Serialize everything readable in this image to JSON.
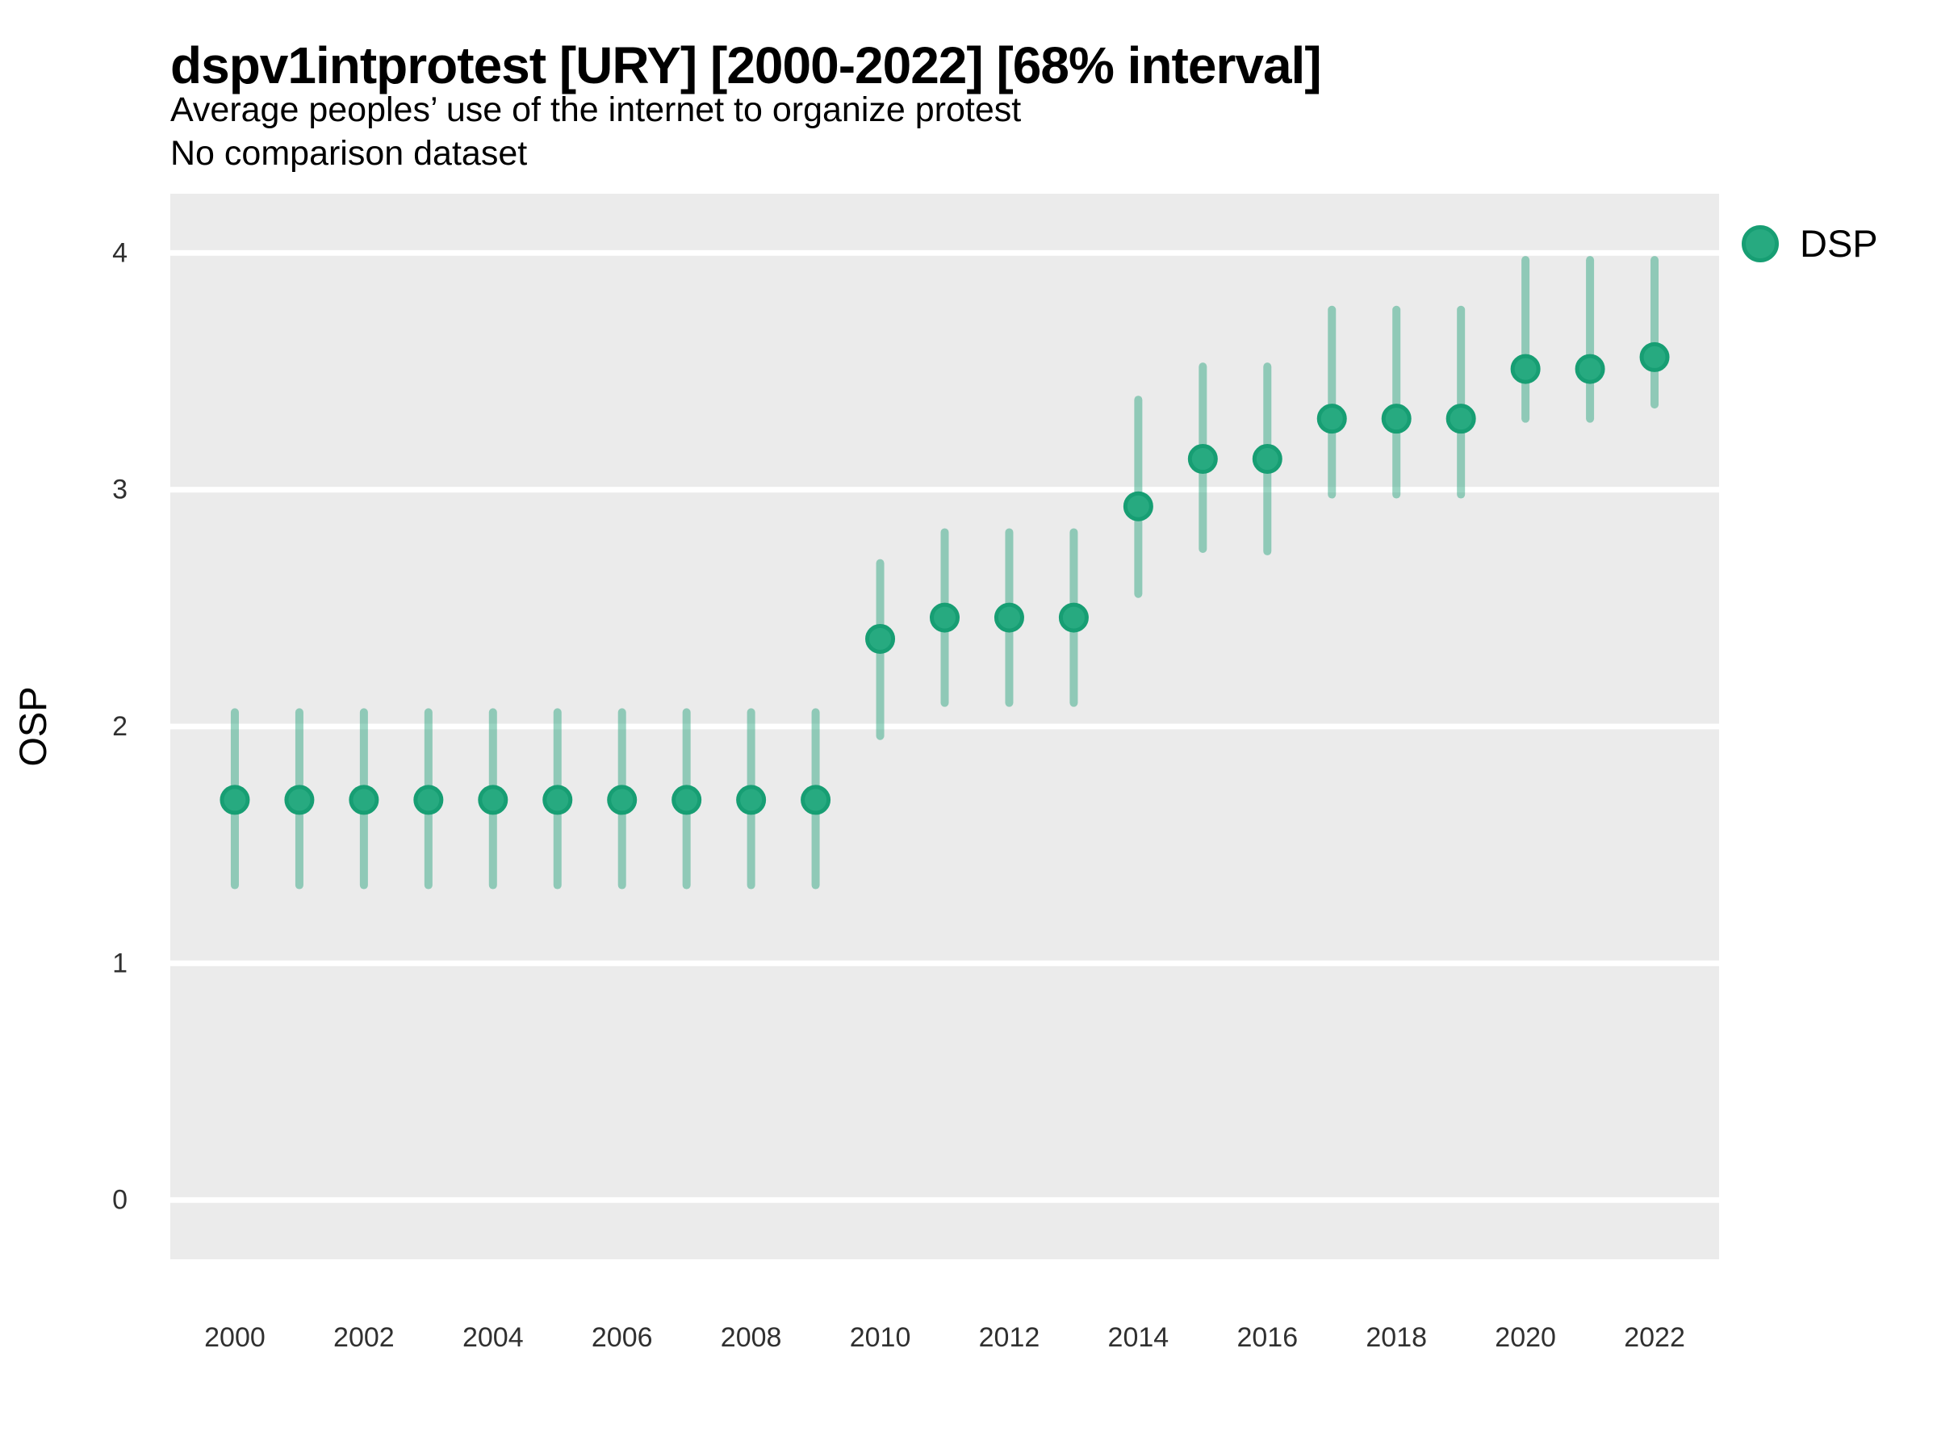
{
  "header": {
    "title": "dspv1intprotest [URY] [2000-2022] [68% interval]",
    "subtitle": "Average peoples’ use of the internet to organize protest",
    "note": "No comparison dataset"
  },
  "y_axis_label": "OSP",
  "legend": {
    "label": "DSP"
  },
  "colors": {
    "point_fill": "#27aa80",
    "point_stroke": "#179e73",
    "interval_stroke": "rgba(30,160,120,0.45)",
    "panel_bg": "#ebebeb",
    "gridline": "#ffffff",
    "axis_text": "#303030"
  },
  "chart_data": {
    "type": "scatter",
    "title": "dspv1intprotest [URY] [2000-2022] [68% interval]",
    "subtitle": "Average peoples’ use of the internet to organize protest",
    "note": "No comparison dataset",
    "xlabel": "",
    "ylabel": "OSP",
    "legend_position": "right-top",
    "grid": "major-horizontal-white-on-gray",
    "interval": "68%",
    "x": [
      2000,
      2001,
      2002,
      2003,
      2004,
      2005,
      2006,
      2007,
      2008,
      2009,
      2010,
      2011,
      2012,
      2013,
      2014,
      2015,
      2016,
      2017,
      2018,
      2019,
      2020,
      2021,
      2022
    ],
    "series": [
      {
        "name": "DSP",
        "values": [
          1.69,
          1.69,
          1.69,
          1.69,
          1.69,
          1.69,
          1.69,
          1.69,
          1.69,
          1.69,
          2.37,
          2.46,
          2.46,
          2.46,
          2.93,
          3.13,
          3.13,
          3.3,
          3.3,
          3.3,
          3.51,
          3.51,
          3.56
        ],
        "lower": [
          1.33,
          1.33,
          1.33,
          1.33,
          1.33,
          1.33,
          1.33,
          1.33,
          1.33,
          1.33,
          1.96,
          2.1,
          2.1,
          2.1,
          2.56,
          2.75,
          2.74,
          2.98,
          2.98,
          2.98,
          3.3,
          3.3,
          3.36
        ],
        "upper": [
          2.06,
          2.06,
          2.06,
          2.06,
          2.06,
          2.06,
          2.06,
          2.06,
          2.06,
          2.06,
          2.69,
          2.82,
          2.82,
          2.82,
          3.38,
          3.52,
          3.52,
          3.76,
          3.76,
          3.76,
          3.97,
          3.97,
          3.97
        ]
      }
    ],
    "x_ticks": [
      2000,
      2002,
      2004,
      2006,
      2008,
      2010,
      2012,
      2014,
      2016,
      2018,
      2020,
      2022
    ],
    "y_ticks": [
      0,
      1,
      2,
      3,
      4
    ],
    "xlim": [
      1999,
      2023
    ],
    "ylim": [
      -0.25,
      4.25
    ]
  }
}
